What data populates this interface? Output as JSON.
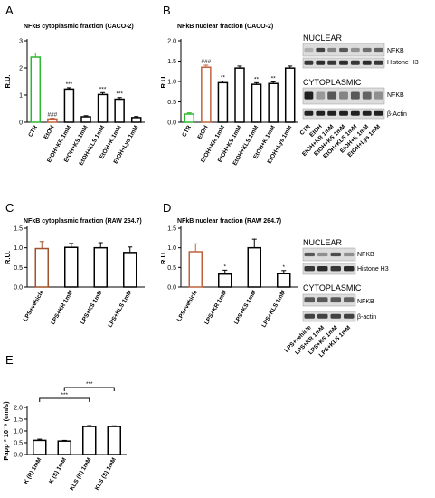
{
  "panel_letters": {
    "a": "A",
    "b": "B",
    "c": "C",
    "d": "D",
    "e": "E"
  },
  "chart_data": [
    {
      "panel": "A",
      "type": "bar",
      "title": "NFkB cytoplasmic fraction (CACO-2)",
      "ylabel": "R.U.",
      "xlabel": "",
      "ylim": [
        0,
        3
      ],
      "yticks": [
        0,
        1,
        2,
        3
      ],
      "categories": [
        "CTR",
        "EtOH",
        "EtOH+KR 1mM",
        "EtOH+KS 1mM",
        "EtOH+KLS 1mM",
        "EtOH+K 1mM",
        "EtOH+Lys 1mM"
      ],
      "values": [
        2.4,
        0.12,
        1.22,
        0.2,
        1.02,
        0.85,
        0.17
      ],
      "errors": [
        0.15,
        0.03,
        0.05,
        0.04,
        0.07,
        0.06,
        0.04
      ],
      "bar_colors": [
        "#2db82d",
        "#c0633d",
        "#000000",
        "#000000",
        "#000000",
        "#000000",
        "#000000"
      ],
      "annotations": [
        "",
        "###",
        "***",
        "",
        "***",
        "***",
        ""
      ]
    },
    {
      "panel": "B",
      "type": "bar",
      "title": "NFkB nuclear fraction (CACO-2)",
      "ylabel": "R.U.",
      "xlabel": "",
      "ylim": [
        0,
        2
      ],
      "yticks": [
        0.0,
        0.5,
        1.0,
        1.5,
        2.0
      ],
      "categories": [
        "CTR",
        "EtOH",
        "EtOH+KR 1mM",
        "EtOH+KS 1mM",
        "EtOH+KLS 1mM",
        "EtOH+K 1mM",
        "EtOH+Lys 1mM"
      ],
      "values": [
        0.2,
        1.35,
        0.97,
        1.33,
        0.93,
        0.95,
        1.33
      ],
      "errors": [
        0.03,
        0.05,
        0.04,
        0.05,
        0.04,
        0.04,
        0.05
      ],
      "bar_colors": [
        "#2db82d",
        "#c0633d",
        "#000000",
        "#000000",
        "#000000",
        "#000000",
        "#000000"
      ],
      "annotations": [
        "",
        "###",
        "**",
        "",
        "**",
        "**",
        ""
      ]
    },
    {
      "panel": "C",
      "type": "bar",
      "title": "NFkB cytoplasmic fraction (RAW 264.7)",
      "ylabel": "R.U.",
      "xlabel": "",
      "ylim": [
        0,
        1.5
      ],
      "yticks": [
        0.0,
        0.5,
        1.0,
        1.5
      ],
      "categories": [
        "LPS+vehicle",
        "LPS+KR 1mM",
        "LPS+KS 1mM",
        "LPS+KLS 1mM"
      ],
      "values": [
        0.98,
        1.01,
        1.0,
        0.88
      ],
      "errors": [
        0.18,
        0.1,
        0.13,
        0.14
      ],
      "bar_colors": [
        "#a0522d",
        "#000000",
        "#000000",
        "#000000"
      ],
      "annotations": [
        "",
        "",
        "",
        ""
      ]
    },
    {
      "panel": "D",
      "type": "bar",
      "title": "NFkB nuclear fraction (RAW 264.7)",
      "ylabel": "R.U.",
      "xlabel": "",
      "ylim": [
        0,
        1.5
      ],
      "yticks": [
        0.0,
        0.5,
        1.0,
        1.5
      ],
      "categories": [
        "LPS+vehicle",
        "LPS+KR 1mM",
        "LPS+KS 1mM",
        "LPS+KLS 1mM"
      ],
      "values": [
        0.9,
        0.33,
        1.0,
        0.34
      ],
      "errors": [
        0.2,
        0.1,
        0.22,
        0.08
      ],
      "bar_colors": [
        "#c0633d",
        "#000000",
        "#000000",
        "#000000"
      ],
      "annotations": [
        "",
        "*",
        "",
        "*"
      ]
    },
    {
      "panel": "E",
      "type": "bar",
      "title": "",
      "ylabel": "Papp * 10⁻⁶ (cm/s)",
      "xlabel": "",
      "ylim": [
        0,
        2
      ],
      "yticks": [
        0.0,
        0.5,
        1.0,
        1.5,
        2.0
      ],
      "categories": [
        "K (R) 1mM",
        "K (S) 1mM",
        "KLS (R) 1mM",
        "KLS (S) 1mM"
      ],
      "values": [
        0.6,
        0.57,
        1.19,
        1.19
      ],
      "errors": [
        0.05,
        0.03,
        0.04,
        0.03
      ],
      "bar_colors": [
        "#000000",
        "#000000",
        "#000000",
        "#000000"
      ],
      "annotations": [
        "",
        "",
        "",
        ""
      ],
      "brackets": [
        {
          "from": 0,
          "to": 2,
          "label": "***"
        },
        {
          "from": 1,
          "to": 3,
          "label": "***"
        }
      ]
    }
  ],
  "blots": {
    "b": {
      "nuclear_title": "NUCLEAR",
      "cyto_title": "CYTOPLASMIC",
      "nuclear_labels": [
        "NFKB",
        "Histone H3"
      ],
      "cyto_labels": [
        "NFKB",
        "β-Actin"
      ],
      "lanes": [
        "CTR",
        "EtOH",
        "EtOH+KR 1mM",
        "EtOH+KS 1mM",
        "EtOH+KLS 1mM",
        "EtOH+K 1mM",
        "EtOH+Lys 1mM"
      ]
    },
    "d": {
      "nuclear_title": "NUCLEAR",
      "cyto_title": "CYTOPLASMIC",
      "nuclear_labels": [
        "NFKB",
        "Histone H3"
      ],
      "cyto_labels": [
        "NFKB",
        "β-actin"
      ],
      "lanes": [
        "LPS+vehicle",
        "LPS+KR 1mM",
        "LPS+KS 1mM",
        "LPS+KLS 1mM"
      ]
    }
  }
}
